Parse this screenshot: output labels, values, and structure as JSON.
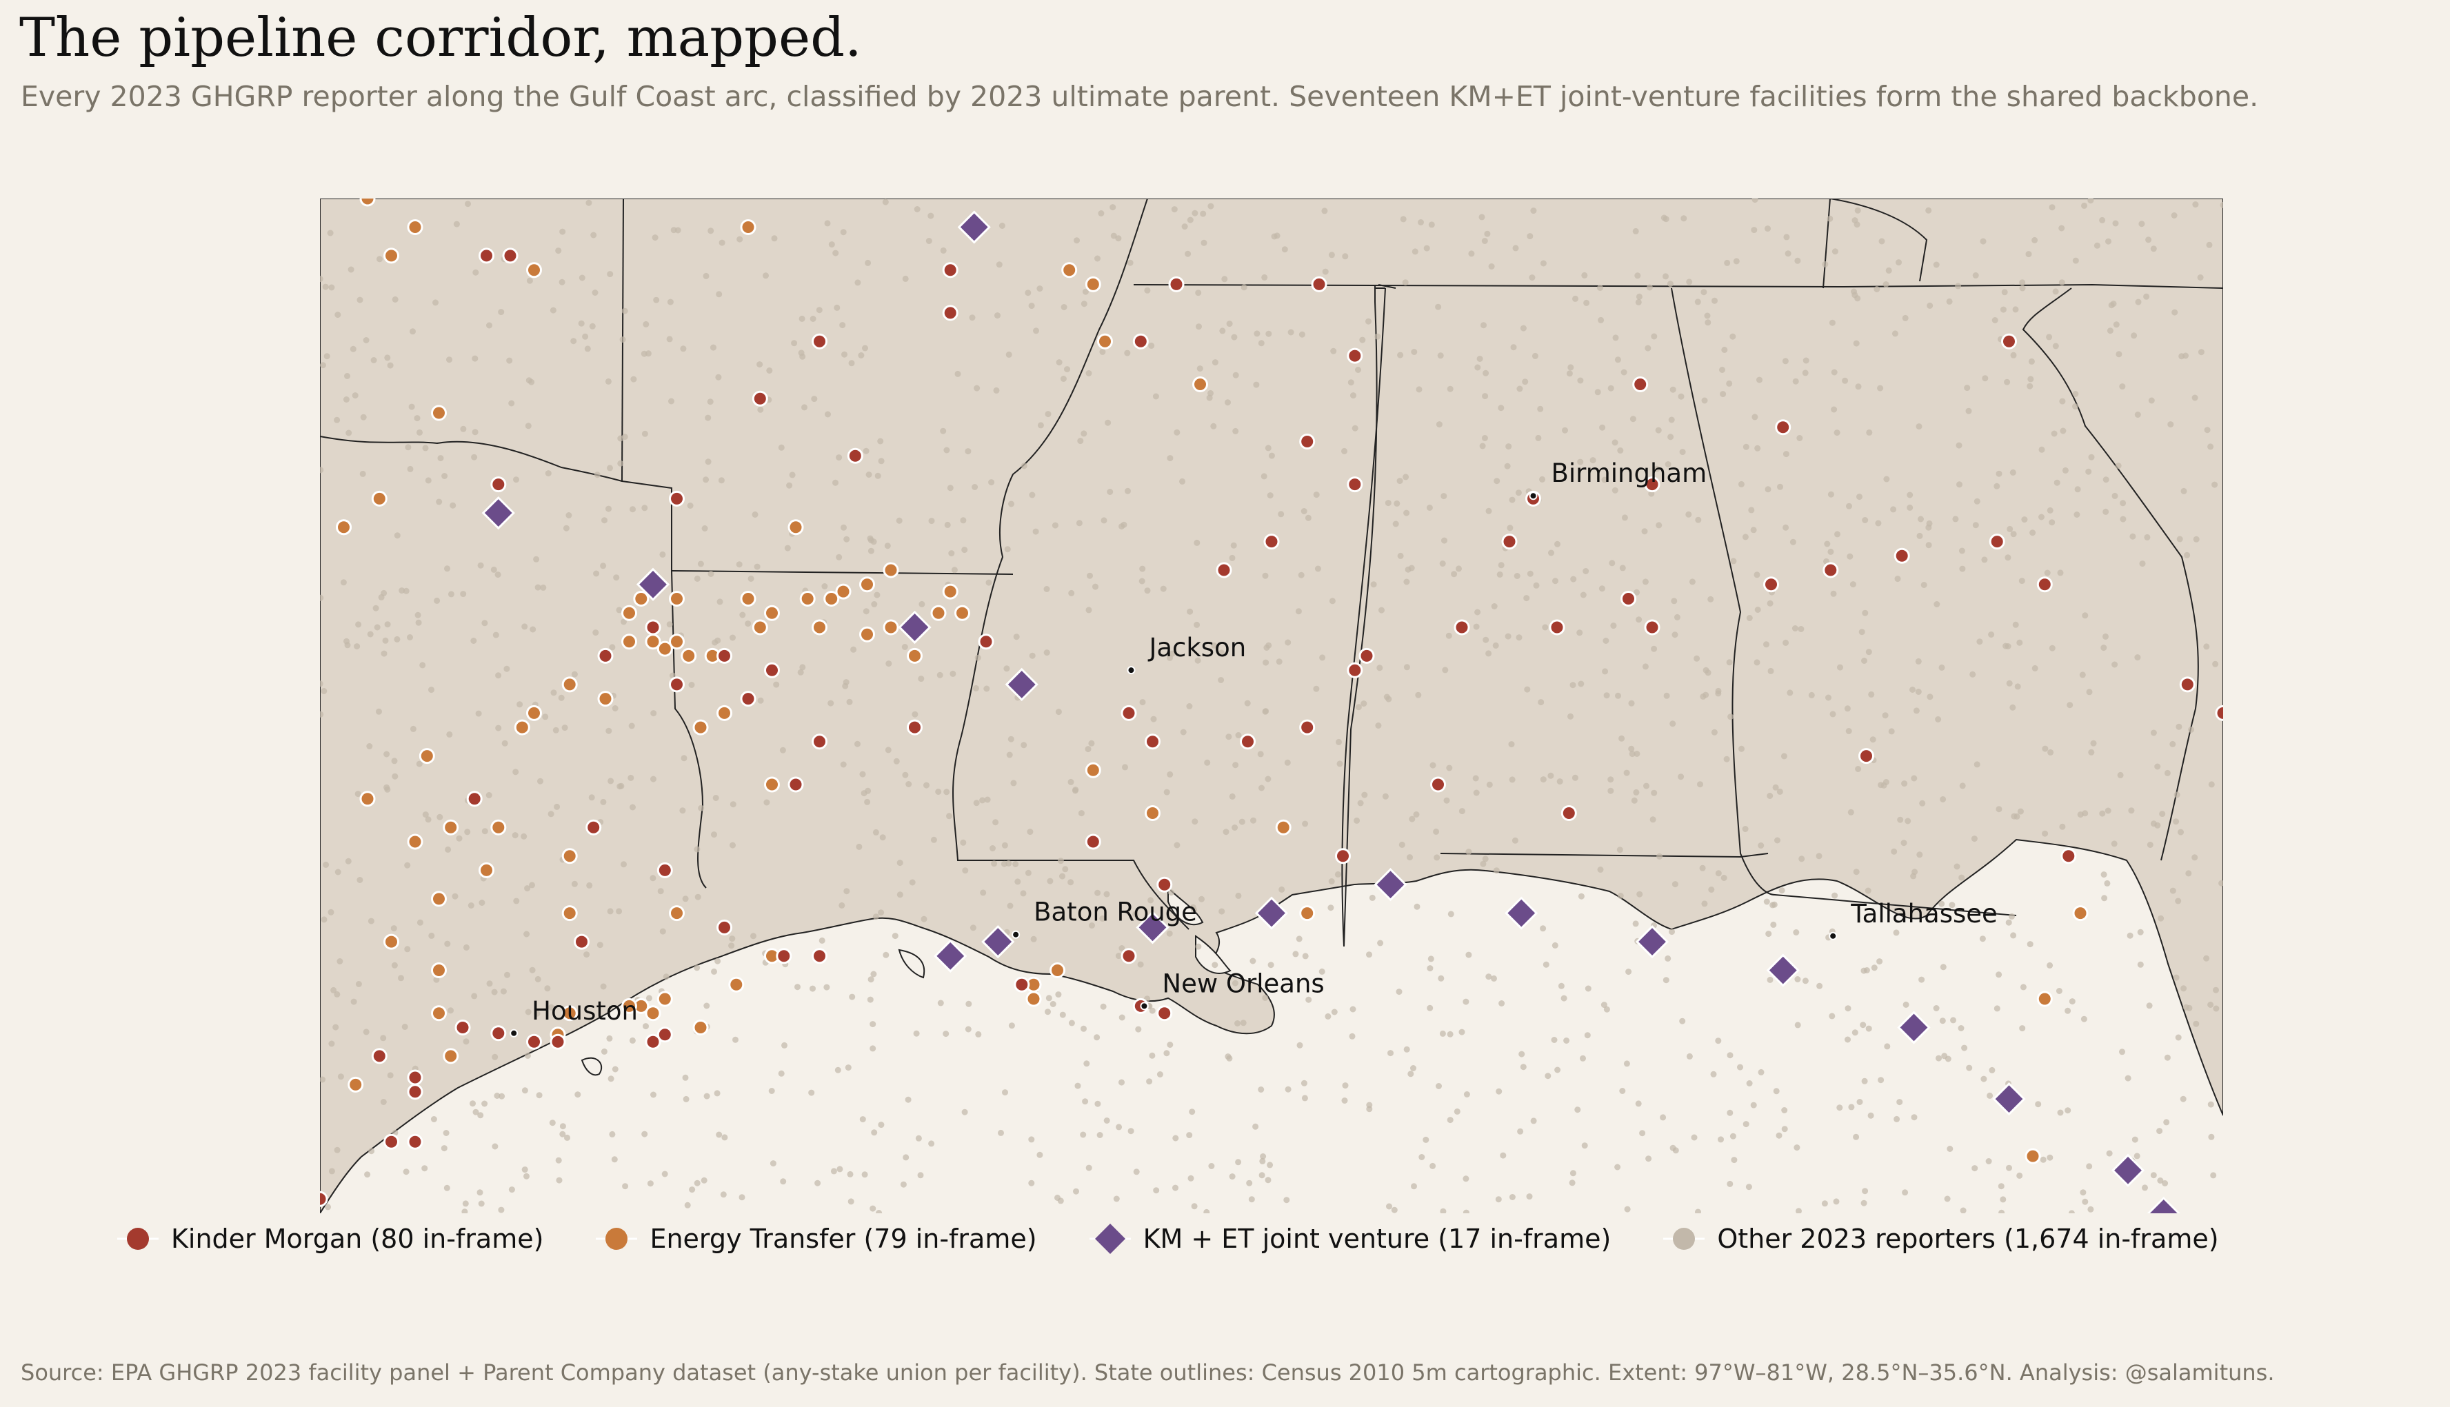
{
  "header": {
    "title": "The pipeline corridor, mapped.",
    "subtitle": "Every 2023 GHGRP reporter along the Gulf Coast arc, classified by 2023 ultimate parent. Seventeen KM+ET joint-venture facilities form the shared backbone."
  },
  "colors": {
    "kinder_morgan": "#a43a2e",
    "energy_transfer": "#c97a3a",
    "joint_venture": "#6b4c8a",
    "other": "#c2b8aa",
    "land": "#dfd6ca",
    "water": "#f5f1ea",
    "border": "#222222"
  },
  "map": {
    "extent": {
      "lon_min": -97,
      "lon_max": -81,
      "lat_min": 28.5,
      "lat_max": 35.6
    },
    "cities": [
      {
        "name": "Birmingham",
        "lon": -86.8,
        "lat": 33.52
      },
      {
        "name": "Jackson",
        "lon": -90.18,
        "lat": 32.3
      },
      {
        "name": "Baton Rouge",
        "lon": -91.15,
        "lat": 30.45
      },
      {
        "name": "Tallahassee",
        "lon": -84.28,
        "lat": 30.44
      },
      {
        "name": "New Orleans",
        "lon": -90.07,
        "lat": 29.95
      },
      {
        "name": "Houston",
        "lon": -95.37,
        "lat": 29.76
      }
    ],
    "joint_venture": [
      [
        -91.5,
        35.4
      ],
      [
        -95.5,
        33.4
      ],
      [
        -94.2,
        32.9
      ],
      [
        -92.0,
        32.6
      ],
      [
        -91.1,
        32.2
      ],
      [
        -89.0,
        30.6
      ],
      [
        -90.0,
        30.5
      ],
      [
        -88.0,
        30.8
      ],
      [
        -86.9,
        30.6
      ],
      [
        -85.8,
        30.4
      ],
      [
        -84.7,
        30.2
      ],
      [
        -83.6,
        29.8
      ],
      [
        -82.8,
        29.3
      ],
      [
        -81.8,
        28.8
      ],
      [
        -81.5,
        28.5
      ],
      [
        -91.7,
        30.3
      ],
      [
        -91.3,
        30.4
      ]
    ],
    "kinder_morgan": [
      [
        -95.4,
        35.2
      ],
      [
        -91.7,
        35.1
      ],
      [
        -89.8,
        35.0
      ],
      [
        -88.6,
        35.0
      ],
      [
        -92.8,
        34.6
      ],
      [
        -90.1,
        34.6
      ],
      [
        -88.3,
        34.5
      ],
      [
        -82.8,
        34.6
      ],
      [
        -88.7,
        33.9
      ],
      [
        -88.3,
        33.6
      ],
      [
        -86.8,
        33.5
      ],
      [
        -85.8,
        33.6
      ],
      [
        -95.5,
        33.6
      ],
      [
        -94.0,
        33.5
      ],
      [
        -89.0,
        33.2
      ],
      [
        -84.3,
        33.0
      ],
      [
        -83.7,
        33.1
      ],
      [
        -82.9,
        33.2
      ],
      [
        -82.5,
        32.9
      ],
      [
        -84.8,
        32.9
      ],
      [
        -85.8,
        32.6
      ],
      [
        -86.6,
        32.6
      ],
      [
        -87.4,
        32.6
      ],
      [
        -88.3,
        32.3
      ],
      [
        -88.7,
        31.9
      ],
      [
        -89.2,
        31.8
      ],
      [
        -88.2,
        32.4
      ],
      [
        -81.3,
        32.2
      ],
      [
        -81.0,
        32.0
      ],
      [
        -94.2,
        32.6
      ],
      [
        -94.6,
        32.4
      ],
      [
        -93.6,
        32.4
      ],
      [
        -93.4,
        32.1
      ],
      [
        -94.0,
        32.2
      ],
      [
        -93.2,
        32.3
      ],
      [
        -92.0,
        31.9
      ],
      [
        -92.8,
        31.8
      ],
      [
        -90.0,
        31.8
      ],
      [
        -93.0,
        31.5
      ],
      [
        -94.7,
        31.2
      ],
      [
        -94.1,
        30.9
      ],
      [
        -94.8,
        30.4
      ],
      [
        -93.1,
        30.3
      ],
      [
        -92.8,
        30.3
      ],
      [
        -91.1,
        30.1
      ],
      [
        -90.1,
        29.95
      ],
      [
        -89.9,
        29.9
      ],
      [
        -90.2,
        30.3
      ],
      [
        -95.8,
        29.8
      ],
      [
        -95.5,
        29.76
      ],
      [
        -95.2,
        29.7
      ],
      [
        -95.0,
        29.7
      ],
      [
        -94.2,
        29.7
      ],
      [
        -94.1,
        29.75
      ],
      [
        -96.5,
        29.6
      ],
      [
        -96.2,
        29.45
      ],
      [
        -96.2,
        29.35
      ],
      [
        -96.4,
        29.0
      ],
      [
        -96.2,
        29.0
      ],
      [
        -97.0,
        28.6
      ],
      [
        -95.6,
        35.2
      ],
      [
        -91.7,
        34.8
      ],
      [
        -86.0,
        32.8
      ],
      [
        -87.0,
        33.2
      ],
      [
        -90.2,
        32.0
      ],
      [
        -89.4,
        33.0
      ],
      [
        -84.0,
        31.7
      ],
      [
        -88.4,
        31.0
      ],
      [
        -92.5,
        33.8
      ],
      [
        -93.3,
        34.2
      ],
      [
        -90.5,
        31.1
      ],
      [
        -89.9,
        30.8
      ],
      [
        -82.3,
        31.0
      ],
      [
        -84.7,
        34.0
      ],
      [
        -86.5,
        31.3
      ],
      [
        -87.6,
        31.5
      ],
      [
        -93.6,
        30.5
      ],
      [
        -95.7,
        31.4
      ],
      [
        -91.4,
        32.5
      ],
      [
        -85.9,
        34.3
      ]
    ],
    "energy_transfer": [
      [
        -96.6,
        35.6
      ],
      [
        -96.2,
        35.4
      ],
      [
        -96.4,
        35.2
      ],
      [
        -95.2,
        35.1
      ],
      [
        -93.4,
        35.4
      ],
      [
        -90.7,
        35.1
      ],
      [
        -96.0,
        34.1
      ],
      [
        -96.8,
        33.3
      ],
      [
        -96.8,
        33.3
      ],
      [
        -94.0,
        32.8
      ],
      [
        -94.4,
        32.7
      ],
      [
        -94.2,
        32.5
      ],
      [
        -94.0,
        32.5
      ],
      [
        -93.4,
        32.8
      ],
      [
        -93.2,
        32.7
      ],
      [
        -92.9,
        32.8
      ],
      [
        -92.7,
        32.8
      ],
      [
        -92.6,
        32.85
      ],
      [
        -92.4,
        32.55
      ],
      [
        -92.2,
        32.6
      ],
      [
        -91.8,
        32.7
      ],
      [
        -91.7,
        32.85
      ],
      [
        -91.6,
        32.7
      ],
      [
        -92.0,
        32.4
      ],
      [
        -92.8,
        32.6
      ],
      [
        -93.3,
        32.6
      ],
      [
        -93.7,
        32.4
      ],
      [
        -93.9,
        32.4
      ],
      [
        -94.1,
        32.45
      ],
      [
        -94.4,
        32.5
      ],
      [
        -94.9,
        32.2
      ],
      [
        -95.3,
        31.9
      ],
      [
        -96.1,
        31.7
      ],
      [
        -95.9,
        31.2
      ],
      [
        -96.2,
        31.1
      ],
      [
        -95.5,
        31.2
      ],
      [
        -94.9,
        31.0
      ],
      [
        -93.2,
        31.5
      ],
      [
        -90.5,
        31.6
      ],
      [
        -88.7,
        30.6
      ],
      [
        -94.0,
        30.6
      ],
      [
        -93.2,
        30.3
      ],
      [
        -96.0,
        30.2
      ],
      [
        -96.0,
        29.9
      ],
      [
        -96.7,
        29.4
      ],
      [
        -94.1,
        30.0
      ],
      [
        -94.2,
        29.9
      ],
      [
        -94.3,
        29.95
      ],
      [
        -93.8,
        29.8
      ],
      [
        -93.5,
        30.1
      ],
      [
        -95.0,
        29.75
      ],
      [
        -91.0,
        30.1
      ],
      [
        -90.0,
        31.3
      ],
      [
        -90.5,
        35.0
      ],
      [
        -96.5,
        33.5
      ],
      [
        -92.2,
        33.0
      ],
      [
        -93.0,
        33.3
      ],
      [
        -94.6,
        32.1
      ],
      [
        -96.0,
        30.7
      ],
      [
        -94.4,
        29.95
      ],
      [
        -82.5,
        30.0
      ],
      [
        -82.2,
        30.6
      ],
      [
        -82.6,
        28.9
      ],
      [
        -90.8,
        30.2
      ],
      [
        -91.0,
        30.0
      ],
      [
        -92.4,
        32.9
      ],
      [
        -93.6,
        32.0
      ],
      [
        -96.6,
        31.4
      ],
      [
        -95.6,
        30.9
      ],
      [
        -94.9,
        30.6
      ],
      [
        -89.6,
        34.3
      ],
      [
        -90.4,
        34.6
      ],
      [
        -88.9,
        31.2
      ],
      [
        -94.3,
        32.8
      ],
      [
        -93.8,
        31.9
      ],
      [
        -95.2,
        32.0
      ],
      [
        -96.4,
        30.4
      ],
      [
        -95.9,
        29.6
      ],
      [
        -94.9,
        29.9
      ]
    ],
    "other_count": 1674
  },
  "legend": {
    "items": [
      {
        "label": "Kinder Morgan  (80 in-frame)",
        "marker": "circle",
        "color": "#a43a2e"
      },
      {
        "label": "Energy Transfer  (79 in-frame)",
        "marker": "circle",
        "color": "#c97a3a"
      },
      {
        "label": "KM + ET joint venture  (17 in-frame)",
        "marker": "diamond",
        "color": "#6b4c8a"
      },
      {
        "label": "Other 2023 reporters  (1,674 in-frame)",
        "marker": "circle",
        "color": "#c2b8aa"
      }
    ]
  },
  "footer": {
    "source": "Source: EPA GHGRP 2023 facility panel + Parent Company dataset (any-stake union per facility).  State outlines: Census 2010 5m cartographic.  Extent: 97°W–81°W, 28.5°N–35.6°N.  Analysis: @salamituns."
  }
}
